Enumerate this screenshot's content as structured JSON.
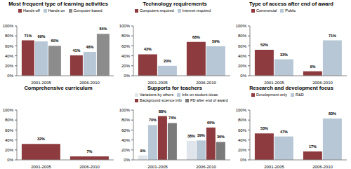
{
  "chart_data": [
    {
      "type": "bar",
      "title": "Most frequent type of learning activities",
      "categories": [
        "2001-2005",
        "2006-2010"
      ],
      "legend": "top",
      "data_labels": true,
      "series": [
        {
          "name": "Hands-off",
          "color": "#8e3b3f",
          "values": [
            71,
            41
          ],
          "value_labels": [
            "71%",
            "41%"
          ]
        },
        {
          "name": "Hands-on",
          "color": "#b7c7d6",
          "values": [
            69,
            48
          ],
          "value_labels": [
            "69%",
            "48%"
          ]
        },
        {
          "name": "Computer-based",
          "color": "#8c8c8c",
          "values": [
            60,
            84
          ],
          "value_labels": [
            "60%",
            "84%"
          ]
        }
      ],
      "ylim": [
        0,
        100
      ],
      "yticks": [
        {
          "value": 0,
          "label": "0%"
        },
        {
          "value": 20,
          "label": "20%"
        },
        {
          "value": 40,
          "label": "40%"
        },
        {
          "value": 60,
          "label": "60%"
        },
        {
          "value": 80,
          "label": "80%"
        },
        {
          "value": 100,
          "label": "100%"
        }
      ]
    },
    {
      "type": "bar",
      "title": "Technology requirements",
      "categories": [
        "2001-2005",
        "2006-2010"
      ],
      "legend": "top",
      "data_labels": true,
      "series": [
        {
          "name": "Computers required",
          "color": "#8e3b3f",
          "values": [
            43,
            68
          ],
          "value_labels": [
            "43%",
            "68%"
          ]
        },
        {
          "name": "Internet required",
          "color": "#b7c7d6",
          "values": [
            20,
            59
          ],
          "value_labels": [
            "20%",
            "59%"
          ]
        }
      ],
      "ylim": [
        0,
        100
      ],
      "yticks": [
        {
          "value": 0,
          "label": "0%"
        },
        {
          "value": 20,
          "label": "20%"
        },
        {
          "value": 40,
          "label": "40%"
        },
        {
          "value": 60,
          "label": "60%"
        },
        {
          "value": 80,
          "label": "80%"
        },
        {
          "value": 100,
          "label": "100%"
        }
      ]
    },
    {
      "type": "bar",
      "title": "Type of access after end of award",
      "categories": [
        "2001-2005",
        "2006-2010"
      ],
      "legend": "top",
      "data_labels": true,
      "series": [
        {
          "name": "Commercial",
          "color": "#8e3b3f",
          "values": [
            52,
            9
          ],
          "value_labels": [
            "52%",
            "9%"
          ]
        },
        {
          "name": "Public",
          "color": "#b7c7d6",
          "values": [
            33,
            71
          ],
          "value_labels": [
            "33%",
            "71%"
          ]
        }
      ],
      "ylim": [
        0,
        100
      ],
      "yticks": [
        {
          "value": 0,
          "label": "0%"
        },
        {
          "value": 20,
          "label": "20%"
        },
        {
          "value": 40,
          "label": "40%"
        },
        {
          "value": 60,
          "label": "60%"
        },
        {
          "value": 80,
          "label": "80%"
        },
        {
          "value": 100,
          "label": "100%"
        }
      ]
    },
    {
      "type": "bar",
      "title": "Comprehensive curriculum",
      "categories": [
        "2001-2005",
        "2006-2010"
      ],
      "data_labels": true,
      "color": "#8e3b3f",
      "values": [
        32,
        7
      ],
      "value_labels": [
        "32%",
        "7%"
      ],
      "ylim": [
        0,
        100
      ],
      "yticks": [
        {
          "value": 0,
          "label": "0%"
        },
        {
          "value": 20,
          "label": "20%"
        },
        {
          "value": 40,
          "label": "40%"
        },
        {
          "value": 60,
          "label": "60%"
        },
        {
          "value": 80,
          "label": "80%"
        },
        {
          "value": 100,
          "label": "100%"
        }
      ]
    },
    {
      "type": "bar",
      "title": "Supports for teachers",
      "categories": [
        "2001-2005",
        "2006-2010"
      ],
      "legend": "top",
      "data_labels": true,
      "series": [
        {
          "name": "Variations by others",
          "color": "#e0e5eb",
          "values": [
            9,
            38
          ],
          "value_labels": [
            "9%",
            "38%"
          ]
        },
        {
          "name": "Info on student ideas",
          "color": "#b7c7d6",
          "values": [
            70,
            39
          ],
          "value_labels": [
            "70%",
            "39%"
          ]
        },
        {
          "name": "Background science info",
          "color": "#8e3b3f",
          "values": [
            88,
            65
          ],
          "value_labels": [
            "88%",
            "65%"
          ]
        },
        {
          "name": "PD after end of award",
          "color": "#7a7a7a",
          "values": [
            74,
            36
          ],
          "value_labels": [
            "74%",
            "36%"
          ]
        }
      ],
      "ylim": [
        0,
        100
      ],
      "yticks": [
        {
          "value": 0,
          "label": "0%"
        },
        {
          "value": 20,
          "label": "20%"
        },
        {
          "value": 40,
          "label": "40%"
        },
        {
          "value": 60,
          "label": "60%"
        },
        {
          "value": 80,
          "label": "80%"
        },
        {
          "value": 100,
          "label": "100%"
        }
      ]
    },
    {
      "type": "bar",
      "title": "Research and development focus",
      "categories": [
        "2001-2005",
        "2006-2010"
      ],
      "legend": "top",
      "data_labels": true,
      "series": [
        {
          "name": "Development only",
          "color": "#8e3b3f",
          "values": [
            53,
            17
          ],
          "value_labels": [
            "53%",
            "17%"
          ]
        },
        {
          "name": "R&D",
          "color": "#b7c7d6",
          "values": [
            47,
            83
          ],
          "value_labels": [
            "47%",
            "83%"
          ]
        }
      ],
      "ylim": [
        0,
        100
      ],
      "yticks": [
        {
          "value": 0,
          "label": "0%"
        },
        {
          "value": 20,
          "label": "20%"
        },
        {
          "value": 40,
          "label": "40%"
        },
        {
          "value": 60,
          "label": "60%"
        },
        {
          "value": 80,
          "label": "80%"
        },
        {
          "value": 100,
          "label": "100%"
        }
      ]
    }
  ]
}
